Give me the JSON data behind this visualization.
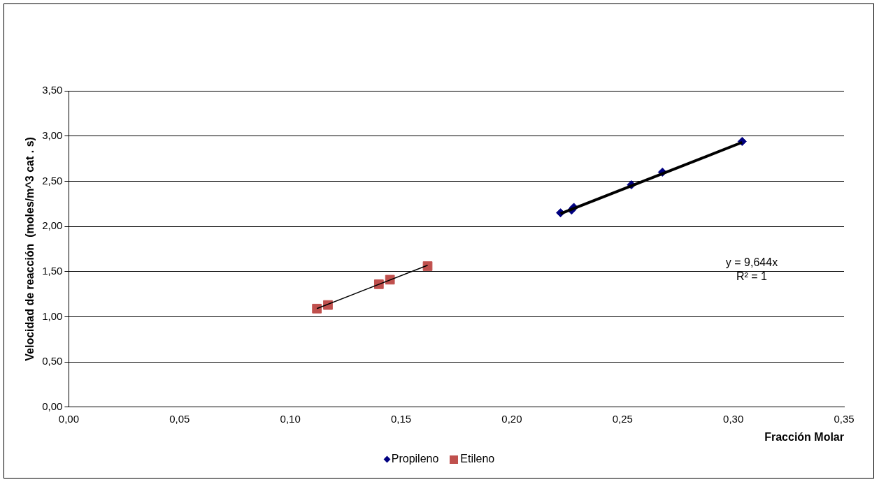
{
  "chart_data": {
    "type": "scatter",
    "xlabel": "Fracción Molar",
    "ylabel": "Velocidad de reacción  (moles/m^3 cat . s)",
    "xlim": [
      0,
      0.35
    ],
    "ylim": [
      0,
      3.5
    ],
    "xticks": [
      {
        "value": 0,
        "label": "0,00"
      },
      {
        "value": 0.05,
        "label": "0,05"
      },
      {
        "value": 0.1,
        "label": "0,10"
      },
      {
        "value": 0.15,
        "label": "0,15"
      },
      {
        "value": 0.2,
        "label": "0,20"
      },
      {
        "value": 0.25,
        "label": "0,25"
      },
      {
        "value": 0.3,
        "label": "0,30"
      },
      {
        "value": 0.35,
        "label": "0,35"
      }
    ],
    "yticks": [
      {
        "value": 0,
        "label": "0,00"
      },
      {
        "value": 0.5,
        "label": "0,50"
      },
      {
        "value": 1,
        "label": "1,00"
      },
      {
        "value": 1.5,
        "label": "1,50"
      },
      {
        "value": 2,
        "label": "2,00"
      },
      {
        "value": 2.5,
        "label": "2,50"
      },
      {
        "value": 3,
        "label": "3,00"
      },
      {
        "value": 3.5,
        "label": "3,50"
      }
    ],
    "grid": "y",
    "legend": "bottom",
    "series": [
      {
        "name": "Propileno",
        "color": "#000080",
        "marker": "diamond",
        "x": [
          0.222,
          0.227,
          0.228,
          0.254,
          0.268,
          0.304
        ],
        "values": [
          2.15,
          2.18,
          2.21,
          2.46,
          2.6,
          2.94
        ]
      },
      {
        "name": "Etileno",
        "color": "#c0504d",
        "marker": "square",
        "x": [
          0.112,
          0.117,
          0.14,
          0.145,
          0.162
        ],
        "values": [
          1.09,
          1.13,
          1.36,
          1.41,
          1.56
        ]
      },
      {
        "type": "line",
        "color": "#000000",
        "x": [
          0.222,
          0.304
        ],
        "values": [
          2.14,
          2.93
        ]
      },
      {
        "type": "line",
        "color": "#000000",
        "x": [
          0.112,
          0.162
        ],
        "values": [
          1.09,
          1.57
        ]
      }
    ],
    "annotations": [
      "y = 9,644x",
      "R² = 1"
    ]
  }
}
